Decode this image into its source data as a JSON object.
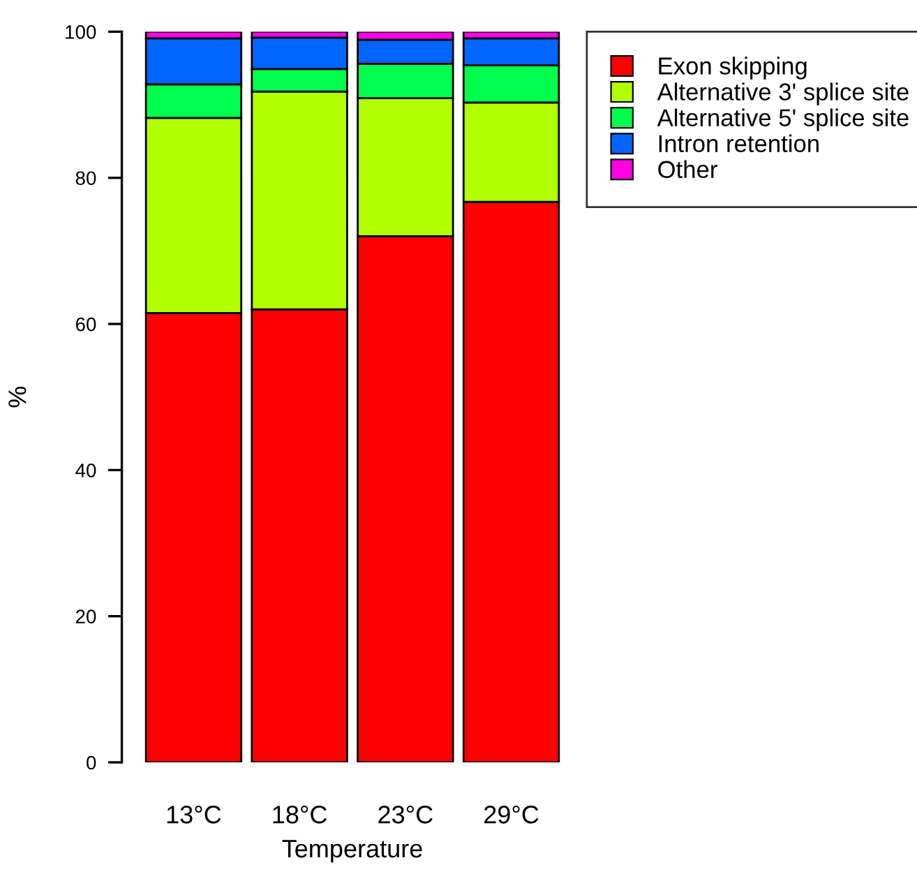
{
  "chart_data": {
    "type": "bar",
    "stacked": true,
    "xlabel": "Temperature",
    "ylabel": "%",
    "categories": [
      "13°C",
      "18°C",
      "23°C",
      "29°C"
    ],
    "series": [
      {
        "name": "Exon skipping",
        "color": "#ff0000",
        "values": [
          61.5,
          62.0,
          72.0,
          76.7
        ]
      },
      {
        "name": "Alternative 3' splice site",
        "color": "#b2ff00",
        "values": [
          26.7,
          29.8,
          18.9,
          13.6
        ]
      },
      {
        "name": "Alternative 5' splice site",
        "color": "#00ff4c",
        "values": [
          4.6,
          3.1,
          4.7,
          5.1
        ]
      },
      {
        "name": "Intron retention",
        "color": "#0066ff",
        "values": [
          6.3,
          4.3,
          3.3,
          3.7
        ]
      },
      {
        "name": "Other",
        "color": "#ff00e5",
        "values": [
          0.9,
          0.8,
          1.1,
          0.9
        ]
      }
    ],
    "ylim": [
      0,
      100
    ],
    "yticks": [
      0,
      20,
      40,
      60,
      80,
      100
    ],
    "grid": false,
    "legend": "top right"
  }
}
